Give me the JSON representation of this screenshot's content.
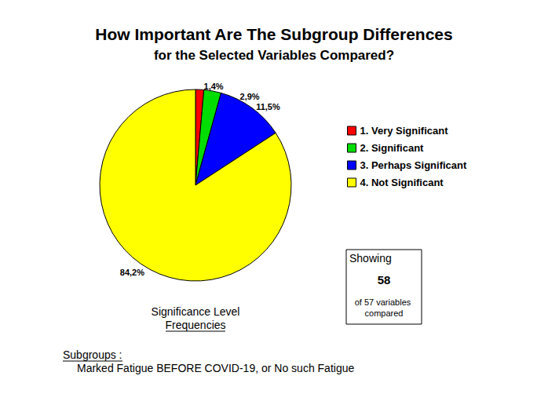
{
  "chart_data": {
    "type": "pie",
    "title": "How Important Are The Subgroup Differences",
    "subtitle": "for the Selected Variables Compared?",
    "categories": [
      "1. Very Significant",
      "2. Significant",
      "3. Perhaps Significant",
      "4. Not Significant"
    ],
    "values": [
      1.4,
      2.9,
      11.5,
      84.2
    ],
    "value_labels": [
      "1,4%",
      "2,9%",
      "11,5%",
      "84,2%"
    ],
    "colors": [
      "#ff0000",
      "#00dd00",
      "#0000ff",
      "#ffff00"
    ],
    "data_labels": true,
    "legend": "right",
    "caption": [
      "Significance Level",
      "Frequencies"
    ],
    "info_box": {
      "label": "Showing",
      "shown": 58,
      "note": "of 57 variables compared"
    },
    "subgroups_label": "Subgroups :",
    "subgroups": "Marked Fatigue BEFORE COVID-19, or No such Fatigue"
  }
}
